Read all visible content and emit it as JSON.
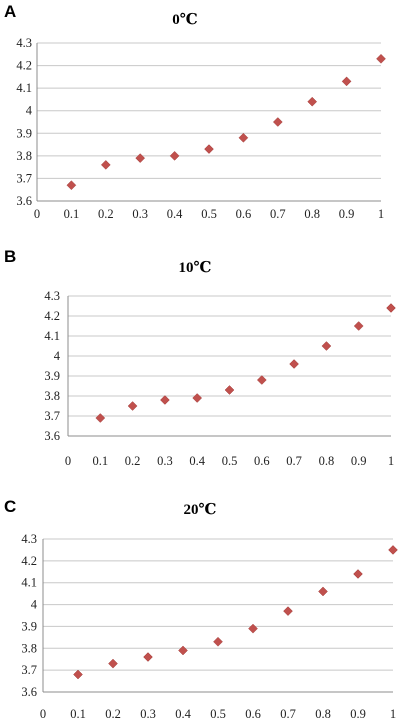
{
  "chart_data": [
    {
      "type": "scatter",
      "panel_label": "A",
      "title": "0℃",
      "xlabel": "",
      "ylabel": "",
      "xlim": [
        0,
        1
      ],
      "ylim": [
        3.6,
        4.3
      ],
      "x_ticks": [
        "0",
        "0.1",
        "0.2",
        "0.3",
        "0.4",
        "0.5",
        "0.6",
        "0.7",
        "0.8",
        "0.9",
        "1"
      ],
      "y_ticks": [
        "3.6",
        "3.7",
        "3.8",
        "3.9",
        "4",
        "4.1",
        "4.2",
        "4.3"
      ],
      "grid": "horizontal",
      "marker_color": "#c0504d",
      "marker": "diamond",
      "series": [
        {
          "x": [
            0.1,
            0.2,
            0.3,
            0.4,
            0.5,
            0.6,
            0.7,
            0.8,
            0.9,
            1.0
          ],
          "y": [
            3.67,
            3.76,
            3.79,
            3.8,
            3.83,
            3.88,
            3.95,
            4.04,
            4.13,
            4.23
          ]
        }
      ]
    },
    {
      "type": "scatter",
      "panel_label": "B",
      "title": "10℃",
      "xlabel": "",
      "ylabel": "",
      "xlim": [
        0,
        1
      ],
      "ylim": [
        3.6,
        4.3
      ],
      "x_ticks": [
        "0",
        "0.1",
        "0.2",
        "0.3",
        "0.4",
        "0.5",
        "0.6",
        "0.7",
        "0.8",
        "0.9",
        "1"
      ],
      "y_ticks": [
        "3.6",
        "3.7",
        "3.8",
        "3.9",
        "4",
        "4.1",
        "4.2",
        "4.3"
      ],
      "grid": "horizontal",
      "marker_color": "#c0504d",
      "marker": "diamond",
      "series": [
        {
          "x": [
            0.1,
            0.2,
            0.3,
            0.4,
            0.5,
            0.6,
            0.7,
            0.8,
            0.9,
            1.0
          ],
          "y": [
            3.69,
            3.75,
            3.78,
            3.79,
            3.83,
            3.88,
            3.96,
            4.05,
            4.15,
            4.24
          ]
        }
      ]
    },
    {
      "type": "scatter",
      "panel_label": "C",
      "title": "20℃",
      "xlabel": "",
      "ylabel": "",
      "xlim": [
        0,
        1
      ],
      "ylim": [
        3.6,
        4.3
      ],
      "x_ticks": [
        "0",
        "0.1",
        "0.2",
        "0.3",
        "0.4",
        "0.5",
        "0.6",
        "0.7",
        "0.8",
        "0.9",
        "1"
      ],
      "y_ticks": [
        "3.6",
        "3.7",
        "3.8",
        "3.9",
        "4",
        "4.1",
        "4.2",
        "4.3"
      ],
      "grid": "horizontal",
      "marker_color": "#c0504d",
      "marker": "diamond",
      "series": [
        {
          "x": [
            0.1,
            0.2,
            0.3,
            0.4,
            0.5,
            0.6,
            0.7,
            0.8,
            0.9,
            1.0
          ],
          "y": [
            3.68,
            3.73,
            3.76,
            3.79,
            3.83,
            3.89,
            3.97,
            4.06,
            4.14,
            4.25
          ]
        }
      ]
    }
  ]
}
